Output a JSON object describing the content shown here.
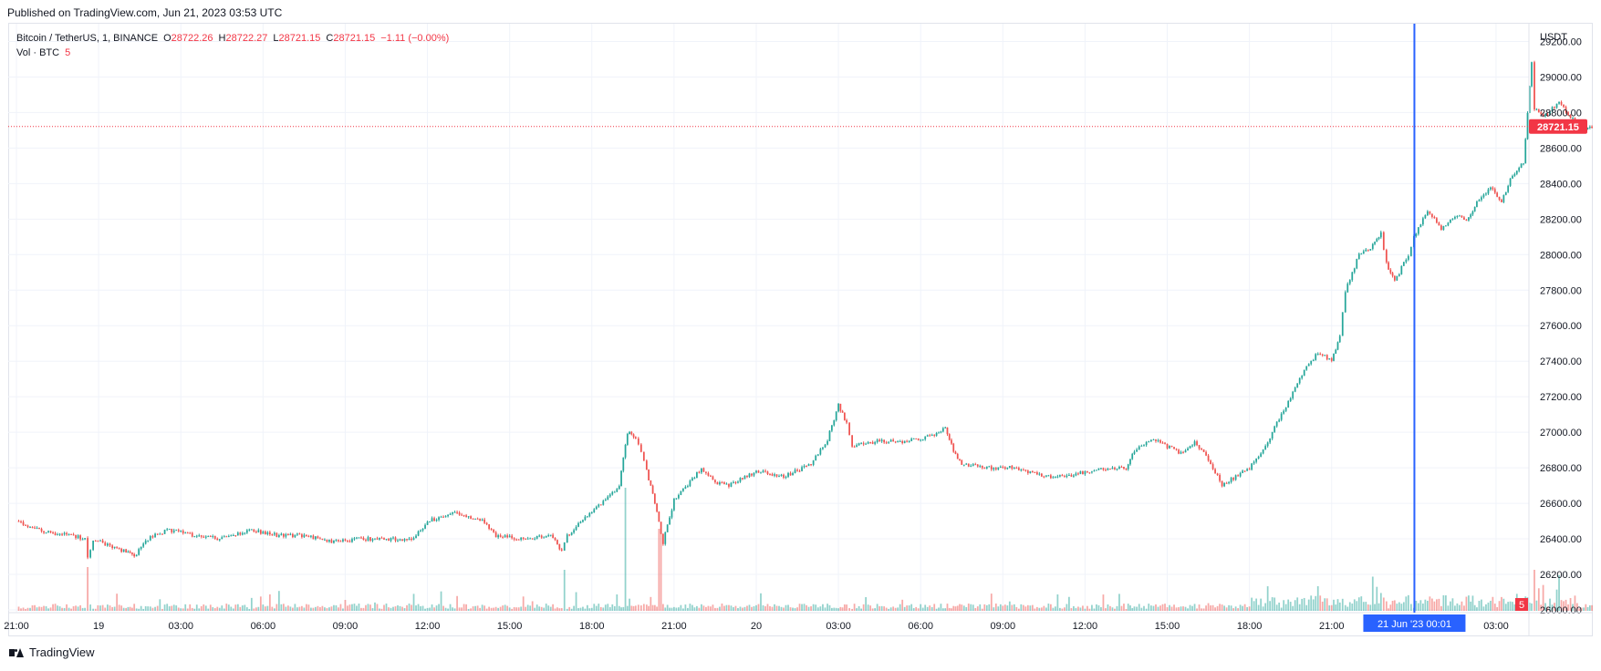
{
  "header": {
    "published": "Published on TradingView.com, Jun 21, 2023 03:53 UTC"
  },
  "legend": {
    "symbol": "Bitcoin / TetherUS, 1, BINANCE",
    "open_label": "O",
    "open": "28722.26",
    "high_label": "H",
    "high": "28722.27",
    "low_label": "L",
    "low": "28721.15",
    "close_label": "C",
    "close": "28721.15",
    "change": "−1.11 (−0.00%)",
    "volume_label": "Vol · BTC",
    "volume": "5"
  },
  "footer": {
    "brand": "TradingView"
  },
  "colors": {
    "up": "#26a69a",
    "down": "#ef5350",
    "crosshair": "#2962ff",
    "price_tag": "#f23645"
  },
  "chart_data": {
    "type": "candlestick",
    "currency": "USDT",
    "y_ticks": [
      "26000.00",
      "26200.00",
      "26400.00",
      "26600.00",
      "26800.00",
      "27000.00",
      "27200.00",
      "27400.00",
      "27600.00",
      "27800.00",
      "28000.00",
      "28200.00",
      "28400.00",
      "28600.00",
      "28800.00",
      "29000.00",
      "29200.00"
    ],
    "ylim": [
      26000,
      29300
    ],
    "x_ticks": [
      "21:00",
      "19",
      "03:00",
      "06:00",
      "09:00",
      "12:00",
      "15:00",
      "18:00",
      "21:00",
      "20",
      "03:00",
      "06:00",
      "09:00",
      "12:00",
      "15:00",
      "18:00",
      "21:00",
      "03:00"
    ],
    "x_tick_hours": [
      0,
      3,
      6,
      9,
      12,
      15,
      18,
      21,
      24,
      27,
      30,
      33,
      36,
      39,
      42,
      45,
      48,
      54
    ],
    "time_range_hours": [
      -0.3,
      55.2
    ],
    "last_price": "28721.15",
    "last_volume": "5",
    "crosshair_label": "21 Jun '23   00:01",
    "crosshair_hour": 51.02,
    "price_path": [
      [
        0,
        26500
      ],
      [
        1,
        26440
      ],
      [
        2,
        26420
      ],
      [
        2.5,
        26400
      ],
      [
        2.6,
        26290
      ],
      [
        2.8,
        26400
      ],
      [
        3.5,
        26350
      ],
      [
        4,
        26330
      ],
      [
        4.3,
        26300
      ],
      [
        4.8,
        26400
      ],
      [
        5.5,
        26450
      ],
      [
        6.5,
        26420
      ],
      [
        7.5,
        26400
      ],
      [
        8.5,
        26450
      ],
      [
        9.5,
        26420
      ],
      [
        10.5,
        26420
      ],
      [
        11.5,
        26380
      ],
      [
        12.5,
        26400
      ],
      [
        13.5,
        26400
      ],
      [
        14.5,
        26400
      ],
      [
        15,
        26500
      ],
      [
        16,
        26550
      ],
      [
        17,
        26500
      ],
      [
        17.5,
        26420
      ],
      [
        18.5,
        26400
      ],
      [
        19.5,
        26420
      ],
      [
        19.9,
        26330
      ],
      [
        20.1,
        26420
      ],
      [
        21,
        26550
      ],
      [
        21.5,
        26620
      ],
      [
        22,
        26700
      ],
      [
        22.3,
        27000
      ],
      [
        22.6,
        26970
      ],
      [
        22.8,
        26900
      ],
      [
        23,
        26780
      ],
      [
        23.3,
        26600
      ],
      [
        23.6,
        26380
      ],
      [
        24,
        26620
      ],
      [
        24.5,
        26700
      ],
      [
        25,
        26800
      ],
      [
        25.5,
        26720
      ],
      [
        26,
        26700
      ],
      [
        27,
        26780
      ],
      [
        28,
        26750
      ],
      [
        29,
        26820
      ],
      [
        29.6,
        26960
      ],
      [
        30,
        27150
      ],
      [
        30.3,
        27050
      ],
      [
        30.5,
        26920
      ],
      [
        31.5,
        26950
      ],
      [
        32.5,
        26950
      ],
      [
        33.5,
        26980
      ],
      [
        33.9,
        27020
      ],
      [
        34.2,
        26900
      ],
      [
        34.5,
        26820
      ],
      [
        35.5,
        26800
      ],
      [
        36.5,
        26800
      ],
      [
        37.5,
        26750
      ],
      [
        38.5,
        26760
      ],
      [
        39.5,
        26790
      ],
      [
        40.5,
        26800
      ],
      [
        40.8,
        26900
      ],
      [
        41.5,
        26960
      ],
      [
        42.5,
        26880
      ],
      [
        43,
        26940
      ],
      [
        43.5,
        26850
      ],
      [
        44,
        26700
      ],
      [
        44.5,
        26750
      ],
      [
        45,
        26800
      ],
      [
        45.5,
        26900
      ],
      [
        46,
        27050
      ],
      [
        46.5,
        27200
      ],
      [
        47,
        27350
      ],
      [
        47.5,
        27450
      ],
      [
        48,
        27400
      ],
      [
        48.3,
        27550
      ],
      [
        48.5,
        27800
      ],
      [
        49,
        28000
      ],
      [
        49.5,
        28050
      ],
      [
        49.8,
        28120
      ],
      [
        50,
        27950
      ],
      [
        50.3,
        27850
      ],
      [
        50.8,
        28000
      ],
      [
        51,
        28100
      ],
      [
        51.5,
        28250
      ],
      [
        52,
        28150
      ],
      [
        52.5,
        28220
      ],
      [
        53,
        28200
      ],
      [
        53.3,
        28300
      ],
      [
        53.8,
        28380
      ],
      [
        54.2,
        28300
      ],
      [
        54.6,
        28450
      ],
      [
        55,
        28520
      ],
      [
        55.3,
        29080
      ],
      [
        55.4,
        28820
      ],
      [
        55.8,
        28780
      ],
      [
        56.3,
        28860
      ],
      [
        56.8,
        28760
      ],
      [
        57.2,
        28710
      ],
      [
        57.5,
        28721
      ]
    ],
    "volume_spikes": [
      [
        2.6,
        32
      ],
      [
        20,
        30
      ],
      [
        21.9,
        12
      ],
      [
        22.2,
        90
      ],
      [
        23.5,
        60
      ],
      [
        49.5,
        25
      ],
      [
        55.4,
        30
      ],
      [
        56.3,
        26
      ],
      [
        47.5,
        18
      ],
      [
        38,
        12
      ],
      [
        31,
        10
      ],
      [
        12,
        8
      ]
    ]
  }
}
